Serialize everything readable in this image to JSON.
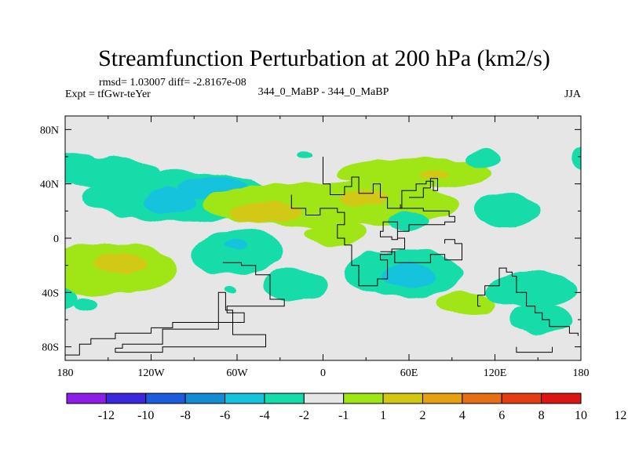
{
  "chart_data": {
    "type": "contour-map",
    "title": "Streamfunction Perturbation at 200 hPa (km2/s)",
    "stats_text": "rmsd= 1.03007 diff= -2.8167e-08",
    "experiment_text": "Expt = tfGwr-teYer",
    "subtitle": "344_0_MaBP - 344_0_MaBP",
    "season": "JJA",
    "x_ticks": [
      {
        "lon": -180,
        "label": "180"
      },
      {
        "lon": -120,
        "label": "120W"
      },
      {
        "lon": -60,
        "label": "60W"
      },
      {
        "lon": 0,
        "label": "0"
      },
      {
        "lon": 60,
        "label": "60E"
      },
      {
        "lon": 120,
        "label": "120E"
      },
      {
        "lon": 180,
        "label": "180"
      }
    ],
    "y_ticks": [
      {
        "lat": 80,
        "label": "80N"
      },
      {
        "lat": 40,
        "label": "40N"
      },
      {
        "lat": 0,
        "label": "0"
      },
      {
        "lat": -40,
        "label": "40S"
      },
      {
        "lat": -80,
        "label": "80S"
      }
    ],
    "xlim": [
      -180,
      180
    ],
    "ylim": [
      -90,
      90
    ],
    "colorbar": {
      "colors": [
        "#8c1ee6",
        "#3c28dc",
        "#1e5adc",
        "#148cd2",
        "#14c3dc",
        "#14dcaa",
        "#e6e6e6",
        "#a0e614",
        "#d2c814",
        "#e6a014",
        "#e66e14",
        "#e63c14",
        "#dc1414"
      ],
      "labels": [
        "-12",
        "-10",
        "-8",
        "-6",
        "-4",
        "-2",
        "-1",
        "1",
        "2",
        "4",
        "6",
        "8",
        "10",
        "12"
      ]
    },
    "field_levels": [
      {
        "name": "-4 to -2",
        "color": "#14c3dc"
      },
      {
        "name": "-2 to -1",
        "color": "#14dcaa"
      },
      {
        "name": "-1 to 1",
        "color": "#e6e6e6"
      },
      {
        "name": "1 to 2",
        "color": "#a0e614"
      },
      {
        "name": "2 to 4",
        "color": "#d2c814"
      }
    ],
    "features": [
      {
        "level": "-2 to -1",
        "lon": -180,
        "lat": 52,
        "rlon": 28,
        "rlat": 11
      },
      {
        "level": "-2 to -1",
        "lon": -148,
        "lat": 48,
        "rlon": 34,
        "rlat": 12
      },
      {
        "level": "-2 to -1",
        "lon": -100,
        "lat": 30,
        "rlon": 68,
        "rlat": 18
      },
      {
        "level": "-4 to -2",
        "lon": -108,
        "lat": 27,
        "rlon": 18,
        "rlat": 10
      },
      {
        "level": "-4 to -2",
        "lon": -77,
        "lat": 37,
        "rlon": 24,
        "rlat": 8
      },
      {
        "level": "1 to 2",
        "lon": 5,
        "lat": 25,
        "rlon": 90,
        "rlat": 17
      },
      {
        "level": "1 to 2",
        "lon": 65,
        "lat": 48,
        "rlon": 55,
        "rlat": 11
      },
      {
        "level": "1 to 2",
        "lon": 10,
        "lat": 3,
        "rlon": 22,
        "rlat": 8
      },
      {
        "level": "2 to 4",
        "lon": -40,
        "lat": 19,
        "rlon": 24,
        "rlat": 8
      },
      {
        "level": "2 to 4",
        "lon": 28,
        "lat": 30,
        "rlon": 16,
        "rlat": 6
      },
      {
        "level": "2 to 4",
        "lon": 78,
        "lat": 46,
        "rlon": 10,
        "rlat": 3
      },
      {
        "level": "-2 to -1",
        "lon": -60,
        "lat": -10,
        "rlon": 32,
        "rlat": 17
      },
      {
        "level": "-4 to -2",
        "lon": -62,
        "lat": -4,
        "rlon": 8,
        "rlat": 4
      },
      {
        "level": "1 to 2",
        "lon": -150,
        "lat": -23,
        "rlon": 50,
        "rlat": 19
      },
      {
        "level": "2 to 4",
        "lon": -142,
        "lat": -18,
        "rlon": 18,
        "rlat": 7
      },
      {
        "level": "-2 to -1",
        "lon": -186,
        "lat": -44,
        "rlon": 14,
        "rlat": 9
      },
      {
        "level": "-2 to -1",
        "lon": -166,
        "lat": -48,
        "rlon": 8,
        "rlat": 5
      },
      {
        "level": "-2 to -1",
        "lon": -65,
        "lat": -39,
        "rlon": 5,
        "rlat": 3
      },
      {
        "level": "-2 to -1",
        "lon": -20,
        "lat": -35,
        "rlon": 22,
        "rlat": 12
      },
      {
        "level": "-2 to -1",
        "lon": 57,
        "lat": -26,
        "rlon": 42,
        "rlat": 18
      },
      {
        "level": "-4 to -2",
        "lon": 60,
        "lat": -28,
        "rlon": 18,
        "rlat": 9
      },
      {
        "level": "1 to 2",
        "lon": 100,
        "lat": -48,
        "rlon": 20,
        "rlat": 9
      },
      {
        "level": "-2 to -1",
        "lon": 128,
        "lat": 20,
        "rlon": 22,
        "rlat": 12
      },
      {
        "level": "-2 to -1",
        "lon": 145,
        "lat": -38,
        "rlon": 32,
        "rlat": 13
      },
      {
        "level": "-2 to -1",
        "lon": 152,
        "lat": -60,
        "rlon": 22,
        "rlat": 12
      },
      {
        "level": "-2 to -1",
        "lon": 112,
        "lat": 58,
        "rlon": 12,
        "rlat": 6
      },
      {
        "level": "-2 to -1",
        "lon": 185,
        "lat": 58,
        "rlon": 10,
        "rlat": 8
      },
      {
        "level": "-2 to -1",
        "lon": 60,
        "lat": 13,
        "rlon": 14,
        "rlat": 6
      },
      {
        "level": "-2 to -1",
        "lon": -12,
        "lat": 61,
        "rlon": 5,
        "rlat": 2
      }
    ],
    "coastlines": [
      {
        "name": "coast-africa",
        "points": [
          [
            -22,
            32
          ],
          [
            -22,
            22
          ],
          [
            -12,
            22
          ],
          [
            -12,
            17
          ],
          [
            -2,
            17
          ],
          [
            -2,
            22
          ],
          [
            10,
            22
          ],
          [
            10,
            19
          ],
          [
            15,
            19
          ],
          [
            15,
            12
          ],
          [
            15,
            10
          ],
          [
            10,
            10
          ],
          [
            10,
            0
          ],
          [
            15,
            0
          ],
          [
            15,
            -5
          ],
          [
            20,
            -5
          ],
          [
            20,
            -20
          ],
          [
            25,
            -20
          ],
          [
            25,
            -35
          ],
          [
            38,
            -35
          ],
          [
            38,
            -30
          ],
          [
            45,
            -30
          ],
          [
            45,
            -16
          ],
          [
            40,
            -16
          ],
          [
            40,
            -12
          ],
          [
            48,
            -12
          ],
          [
            48,
            -8
          ],
          [
            57,
            -8
          ],
          [
            57,
            0
          ],
          [
            52,
            0
          ],
          [
            52,
            12
          ],
          [
            42,
            12
          ],
          [
            42,
            5
          ],
          [
            40,
            5
          ],
          [
            40,
            1
          ],
          [
            48,
            1
          ],
          [
            48,
            -1
          ],
          [
            52,
            -1
          ],
          [
            52,
            5
          ],
          [
            60,
            5
          ],
          [
            60,
            10
          ],
          [
            85,
            10
          ],
          [
            85,
            12
          ],
          [
            92,
            12
          ],
          [
            92,
            16
          ],
          [
            88,
            16
          ],
          [
            88,
            20
          ],
          [
            70,
            20
          ],
          [
            70,
            22
          ],
          [
            54,
            22
          ],
          [
            54,
            25
          ]
        ]
      },
      {
        "name": "coast-europe",
        "points": [
          [
            0,
            60
          ],
          [
            0,
            40
          ],
          [
            5,
            40
          ],
          [
            5,
            32
          ],
          [
            15,
            32
          ],
          [
            15,
            38
          ],
          [
            20,
            38
          ],
          [
            20,
            45
          ],
          [
            25,
            45
          ],
          [
            25,
            33
          ],
          [
            35,
            33
          ],
          [
            35,
            40
          ],
          [
            40,
            40
          ],
          [
            40,
            30
          ],
          [
            45,
            30
          ],
          [
            45,
            22
          ],
          [
            55,
            22
          ],
          [
            55,
            35
          ],
          [
            65,
            35
          ],
          [
            65,
            40
          ],
          [
            72,
            40
          ],
          [
            72,
            42
          ],
          [
            77,
            42
          ],
          [
            77,
            35
          ],
          [
            80,
            35
          ],
          [
            80,
            44
          ],
          [
            75,
            44
          ],
          [
            75,
            37
          ],
          [
            70,
            37
          ],
          [
            70,
            30
          ],
          [
            60,
            30
          ]
        ]
      },
      {
        "name": "coast-south-america",
        "points": [
          [
            -70,
            -18
          ],
          [
            -57,
            -18
          ],
          [
            -57,
            -20
          ],
          [
            -47,
            -20
          ],
          [
            -47,
            -27
          ],
          [
            -37,
            -27
          ],
          [
            -37,
            -45
          ],
          [
            -27,
            -45
          ],
          [
            -27,
            -50
          ],
          [
            -67,
            -50
          ],
          [
            -67,
            -55
          ],
          [
            -55,
            -55
          ],
          [
            -55,
            -62
          ],
          [
            -105,
            -62
          ],
          [
            -105,
            -66
          ],
          [
            -120,
            -66
          ],
          [
            -120,
            -70
          ],
          [
            -145,
            -70
          ],
          [
            -145,
            -74
          ],
          [
            -162,
            -74
          ],
          [
            -162,
            -78
          ],
          [
            -170,
            -78
          ],
          [
            -170,
            -86
          ],
          [
            -180,
            -86
          ]
        ]
      },
      {
        "name": "coast-antarctica-peninsula",
        "points": [
          [
            -145,
            -81
          ],
          [
            -145,
            -84
          ],
          [
            -112,
            -84
          ],
          [
            -112,
            -80
          ],
          [
            -40,
            -80
          ],
          [
            -40,
            -71
          ],
          [
            -63,
            -71
          ],
          [
            -63,
            -53
          ],
          [
            -68,
            -53
          ],
          [
            -68,
            -40
          ],
          [
            -73,
            -40
          ],
          [
            -73,
            -67
          ],
          [
            -112,
            -67
          ],
          [
            -112,
            -78
          ],
          [
            -140,
            -78
          ],
          [
            -140,
            -81
          ],
          [
            -145,
            -81
          ]
        ]
      },
      {
        "name": "coast-india-asia",
        "points": [
          [
            85,
            -4
          ],
          [
            85,
            -1
          ],
          [
            92,
            -1
          ],
          [
            92,
            -4
          ],
          [
            97,
            -4
          ],
          [
            97,
            -16
          ],
          [
            85,
            -16
          ],
          [
            85,
            -12
          ],
          [
            75,
            -12
          ],
          [
            75,
            -18
          ],
          [
            50,
            -18
          ],
          [
            50,
            -10
          ],
          [
            40,
            -10
          ]
        ]
      },
      {
        "name": "coast-australia",
        "points": [
          [
            110,
            -50
          ],
          [
            108,
            -50
          ],
          [
            108,
            -42
          ],
          [
            113,
            -42
          ],
          [
            113,
            -35
          ],
          [
            123,
            -35
          ],
          [
            123,
            -22
          ],
          [
            128,
            -22
          ],
          [
            128,
            -25
          ],
          [
            132,
            -25
          ],
          [
            132,
            -28
          ],
          [
            135,
            -28
          ],
          [
            135,
            -40
          ],
          [
            142,
            -40
          ],
          [
            142,
            -50
          ],
          [
            148,
            -50
          ],
          [
            148,
            -55
          ],
          [
            153,
            -55
          ],
          [
            153,
            -60
          ],
          [
            158,
            -60
          ],
          [
            158,
            -65
          ],
          [
            172,
            -65
          ],
          [
            172,
            -70
          ],
          [
            178,
            -70
          ],
          [
            178,
            -72
          ]
        ]
      },
      {
        "name": "coast-antarctica-east",
        "points": [
          [
            135,
            -80
          ],
          [
            135,
            -84
          ],
          [
            160,
            -84
          ],
          [
            160,
            -80
          ]
        ]
      }
    ]
  }
}
